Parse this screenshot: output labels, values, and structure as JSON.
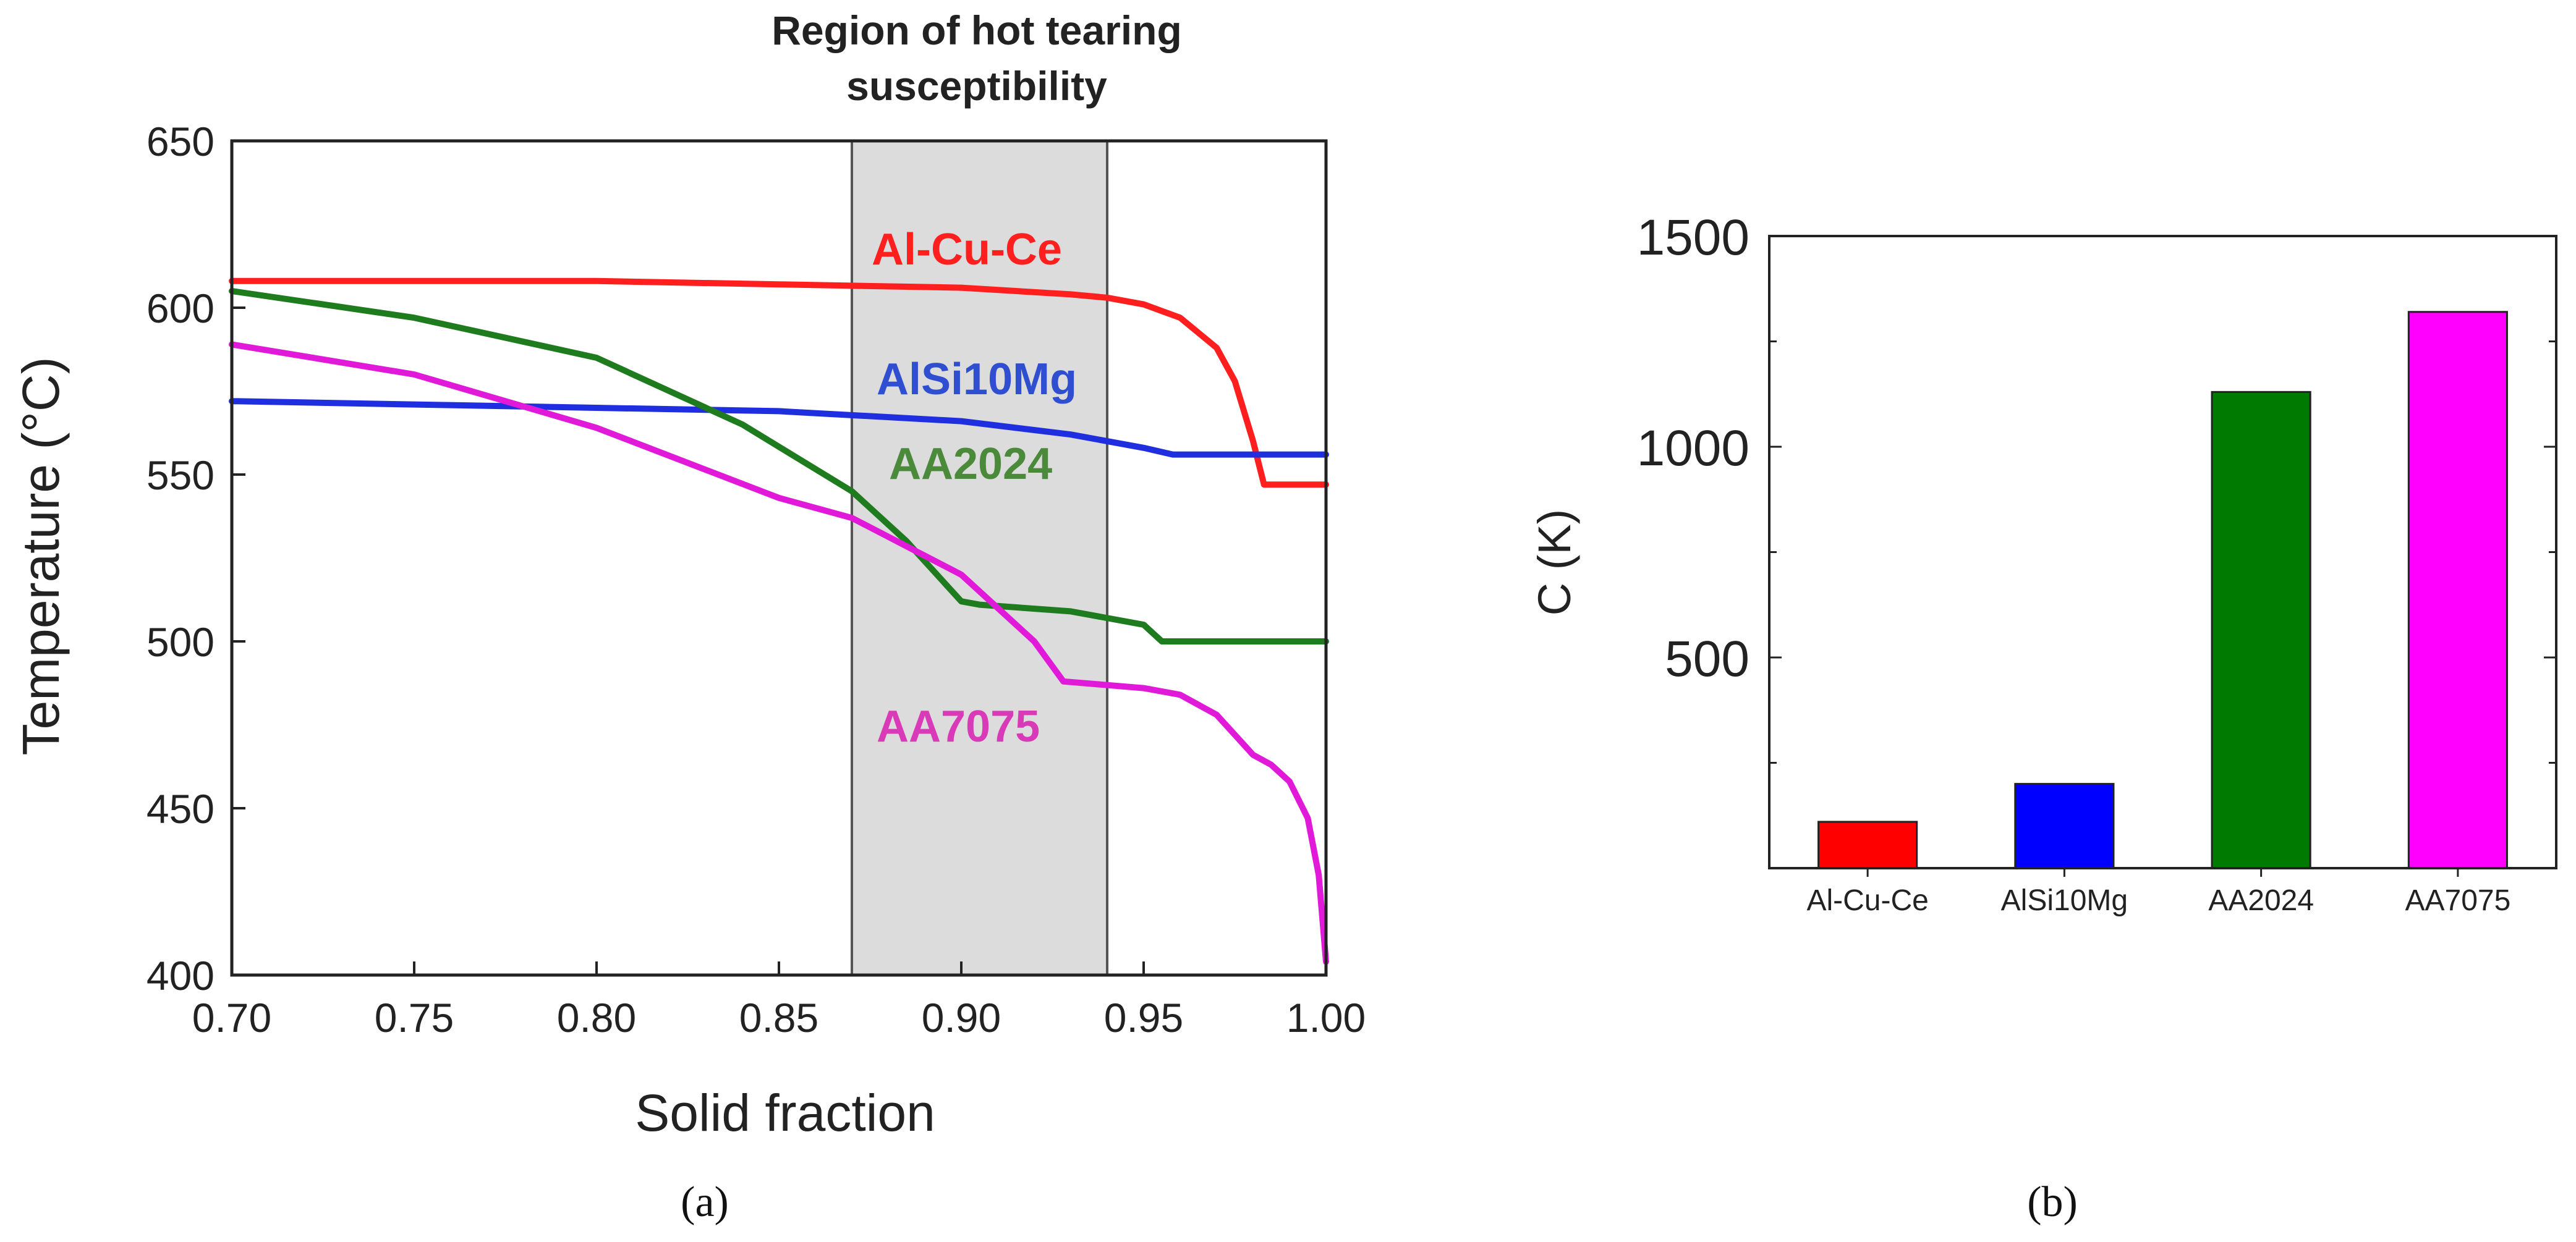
{
  "chart_data": [
    {
      "panel_label": "(a)",
      "type": "line",
      "title": "Region of hot tearing susceptibility",
      "xlabel": "Solid fraction",
      "ylabel": "Temperature (°C)",
      "xlim": [
        0.7,
        1.0
      ],
      "ylim": [
        400,
        650
      ],
      "xticks": [
        "0.70",
        "0.75",
        "0.80",
        "0.85",
        "0.90",
        "0.95",
        "1.00"
      ],
      "yticks": [
        "400",
        "450",
        "500",
        "550",
        "600",
        "650"
      ],
      "shaded_region": {
        "x": [
          0.87,
          0.94
        ],
        "color": "#dcdcdc"
      },
      "grid": false,
      "series": [
        {
          "name": "Al-Cu-Ce",
          "color": "#ff1f1f",
          "x": [
            0.7,
            0.8,
            0.85,
            0.9,
            0.93,
            0.94,
            0.95,
            0.96,
            0.97,
            0.975,
            0.98,
            0.983,
            0.985,
            1.0
          ],
          "y": [
            608,
            608,
            607,
            606,
            604,
            603,
            601,
            597,
            588,
            578,
            560,
            547,
            547,
            547
          ]
        },
        {
          "name": "AlSi10Mg",
          "color": "#1f2fdf",
          "x": [
            0.7,
            0.8,
            0.85,
            0.9,
            0.93,
            0.95,
            0.958,
            1.0
          ],
          "y": [
            572,
            570,
            569,
            566,
            562,
            558,
            556,
            556
          ]
        },
        {
          "name": "AA2024",
          "color": "#1e7b1e",
          "x": [
            0.7,
            0.75,
            0.8,
            0.84,
            0.87,
            0.885,
            0.9,
            0.905,
            0.93,
            0.95,
            0.955,
            1.0
          ],
          "y": [
            605,
            597,
            585,
            565,
            545,
            530,
            512,
            511,
            509,
            505,
            500,
            500
          ]
        },
        {
          "name": "AA7075",
          "color": "#e01ad8",
          "x": [
            0.7,
            0.75,
            0.8,
            0.85,
            0.87,
            0.9,
            0.92,
            0.928,
            0.95,
            0.96,
            0.97,
            0.98,
            0.985,
            0.99,
            0.995,
            0.998,
            1.0
          ],
          "y": [
            589,
            580,
            564,
            543,
            537,
            520,
            500,
            488,
            486,
            484,
            478,
            466,
            463,
            458,
            447,
            430,
            404
          ]
        }
      ]
    },
    {
      "panel_label": "(b)",
      "type": "bar",
      "ylabel": "C (K)",
      "ylim": [
        0,
        1500
      ],
      "yticks": [
        "500",
        "1000",
        "1500"
      ],
      "categories": [
        "Al-Cu-Ce",
        "AlSi10Mg",
        "AA2024",
        "AA7075"
      ],
      "values": [
        110,
        200,
        1130,
        1320
      ],
      "colors": [
        "#ff0000",
        "#0000ff",
        "#007a00",
        "#ff00ff"
      ],
      "grid": false
    }
  ]
}
